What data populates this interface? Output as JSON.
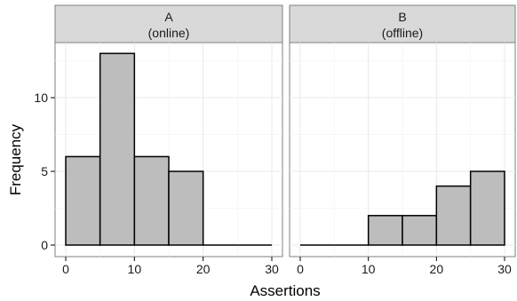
{
  "chart_data": {
    "type": "bar",
    "subtype": "histogram-faceted",
    "xlabel": "Assertions",
    "ylabel": "Frequency",
    "bin_width": 5,
    "xlim": [
      0,
      30
    ],
    "ylim": [
      0,
      13
    ],
    "x_ticks": [
      0,
      10,
      20,
      30
    ],
    "y_ticks": [
      0,
      5,
      10
    ],
    "grid": true,
    "facets": [
      {
        "label_line1": "A",
        "label_line2": "(online)",
        "bin_edges": [
          0,
          5,
          10,
          15,
          20,
          25,
          30
        ],
        "counts": [
          6,
          13,
          6,
          5,
          0,
          0
        ]
      },
      {
        "label_line1": "B",
        "label_line2": "(offline)",
        "bin_edges": [
          0,
          5,
          10,
          15,
          20,
          25,
          30
        ],
        "counts": [
          0,
          0,
          2,
          2,
          4,
          5
        ]
      }
    ]
  }
}
